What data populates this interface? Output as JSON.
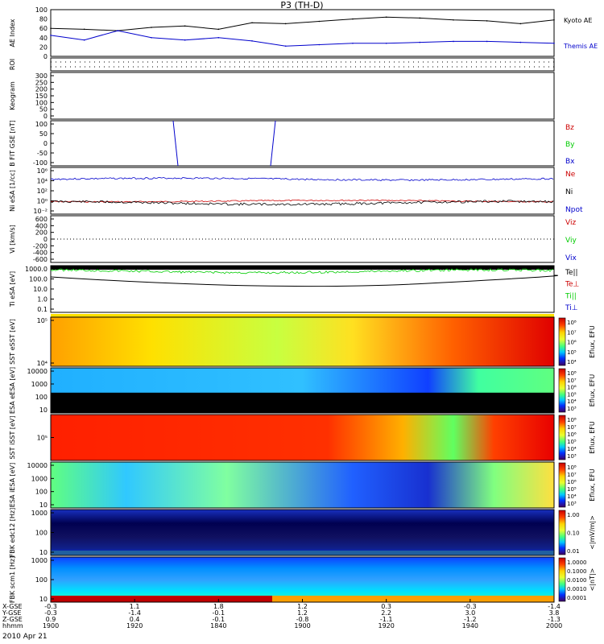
{
  "title": "P3 (TH-D)",
  "date_label": "2010 Apr 21",
  "chart_data": [
    {
      "type": "line",
      "id": "ae",
      "ylabel": "AE Index",
      "ylim": [
        0,
        100
      ],
      "yticks": [
        "100",
        "80",
        "60",
        "40",
        "20",
        "0"
      ],
      "x": [
        "19:00",
        "19:08",
        "19:16",
        "19:24",
        "19:32",
        "19:40",
        "19:48",
        "19:56",
        "20:04",
        "20:12",
        "20:20",
        "20:28",
        "20:36",
        "20:44",
        "20:52",
        "21:00"
      ],
      "series": [
        {
          "name": "Kyoto AE",
          "color": "#000000",
          "values": [
            60,
            58,
            55,
            62,
            65,
            58,
            72,
            70,
            75,
            80,
            84,
            82,
            78,
            76,
            70,
            78
          ]
        },
        {
          "name": "Themis AE",
          "color": "#0000cc",
          "values": [
            45,
            35,
            55,
            40,
            35,
            40,
            33,
            22,
            25,
            28,
            28,
            30,
            32,
            32,
            30,
            28
          ]
        }
      ]
    },
    {
      "type": "line",
      "id": "roi",
      "ylabel": "ROI",
      "yticks": []
    },
    {
      "type": "heatmap",
      "id": "keogram",
      "ylabel": "Keogram",
      "ylim": [
        0,
        300
      ],
      "yticks": [
        "300",
        "250",
        "200",
        "150",
        "100",
        "50",
        "0"
      ]
    },
    {
      "type": "line",
      "id": "bfit",
      "ylabel": "B FIT GSE [nT]",
      "ylim": [
        -100,
        100
      ],
      "yticks": [
        "100",
        "50",
        "0",
        "-50",
        "-100"
      ],
      "legend": [
        "Bz",
        "By",
        "Bx"
      ],
      "legend_colors": [
        "#cc0000",
        "#00cc00",
        "#0000cc"
      ]
    },
    {
      "type": "line",
      "id": "ni",
      "ylabel": "Ni eSA [1/cc]",
      "yticks": [
        "10⁶",
        "10⁴",
        "10²",
        "10⁰",
        "10⁻²"
      ],
      "legend": [
        "Ne",
        "Ni",
        "Npot"
      ],
      "legend_colors": [
        "#cc0000",
        "#000000",
        "#0000cc"
      ]
    },
    {
      "type": "line",
      "id": "vi",
      "ylabel": "Vi [km/s]",
      "ylim": [
        -600,
        600
      ],
      "yticks": [
        "600",
        "400",
        "200",
        "0",
        "-200",
        "-400",
        "-600"
      ],
      "legend": [
        "Viz",
        "Viy",
        "Vix"
      ],
      "legend_colors": [
        "#cc0000",
        "#00cc00",
        "#0000cc"
      ]
    },
    {
      "type": "line",
      "id": "ti",
      "ylabel": "Ti eSA [eV]",
      "yticks": [
        "1000.0",
        "100.0",
        "10.0",
        "1.0",
        "0.1"
      ],
      "legend": [
        "Te||",
        "Te⊥",
        "Ti||",
        "Ti⊥"
      ],
      "legend_colors": [
        "#000000",
        "#cc0000",
        "#00cc00",
        "#0000cc"
      ]
    },
    {
      "type": "heatmap",
      "id": "sste",
      "ylabel": "SST eSST [eV]",
      "yticks": [
        "10⁵",
        "10⁴"
      ],
      "cbar_label": "Eflux, EFU",
      "cbar_ticks": [
        "10⁸",
        "10⁷",
        "10⁶",
        "10⁵",
        "10⁴"
      ]
    },
    {
      "type": "heatmap",
      "id": "esae",
      "ylabel": "ESA eESA [eV]",
      "yticks": [
        "10000",
        "1000",
        "100",
        "10"
      ],
      "cbar_label": "Eflux, EFU",
      "cbar_ticks": [
        "10⁸",
        "10⁷",
        "10⁶",
        "10⁵",
        "10⁴",
        "10³"
      ]
    },
    {
      "type": "heatmap",
      "id": "ssti",
      "ylabel": "SST iSST [eV]",
      "yticks": [
        "10⁵"
      ],
      "cbar_label": "Eflux, EFU",
      "cbar_ticks": [
        "10⁸",
        "10⁷",
        "10⁶",
        "10⁵",
        "10⁴",
        "10³"
      ]
    },
    {
      "type": "heatmap",
      "id": "esai",
      "ylabel": "ESA iESA [eV]",
      "yticks": [
        "10000",
        "1000",
        "100",
        "10"
      ],
      "cbar_label": "Eflux, EFU",
      "cbar_ticks": [
        "10⁸",
        "10⁷",
        "10⁶",
        "10⁵",
        "10⁴",
        "10³"
      ]
    },
    {
      "type": "heatmap",
      "id": "fbke",
      "ylabel": "FBK edc12 [Hz]",
      "yticks": [
        "1000",
        "100",
        "10"
      ],
      "cbar_label": "<|mV/m|>",
      "cbar_ticks": [
        "1.00",
        "0.10",
        "0.01"
      ]
    },
    {
      "type": "heatmap",
      "id": "fbkb",
      "ylabel": "FBK scm1 [Hz]",
      "yticks": [
        "1000",
        "100",
        "10"
      ],
      "cbar_label": "<|nT|>",
      "cbar_ticks": [
        "1.0000",
        "0.1000",
        "0.0100",
        "0.0010",
        "0.0001"
      ]
    }
  ],
  "xaxis": {
    "row_labels": [
      "X-GSE",
      "Y-GSE",
      "Z-GSE",
      "hhmm"
    ],
    "ticks": [
      {
        "x": "-0.3",
        "y": "-0.3",
        "z": "0.9",
        "t": "1900"
      },
      {
        "x": "1.1",
        "y": "-1.4",
        "z": "0.4",
        "t": "1920"
      },
      {
        "x": "1.8",
        "y": "-0.1",
        "z": "-0.1",
        "t": "1840"
      },
      {
        "x": "1.2",
        "y": "1.2",
        "z": "-0.8",
        "t": "1900"
      },
      {
        "x": "0.3",
        "y": "2.2",
        "z": "-1.1",
        "t": "1920"
      },
      {
        "x": "-0.3",
        "y": "3.0",
        "z": "-1.2",
        "t": "1940"
      },
      {
        "x": "-1.4",
        "y": "3.8",
        "z": "-1.3",
        "t": "2000"
      }
    ]
  }
}
